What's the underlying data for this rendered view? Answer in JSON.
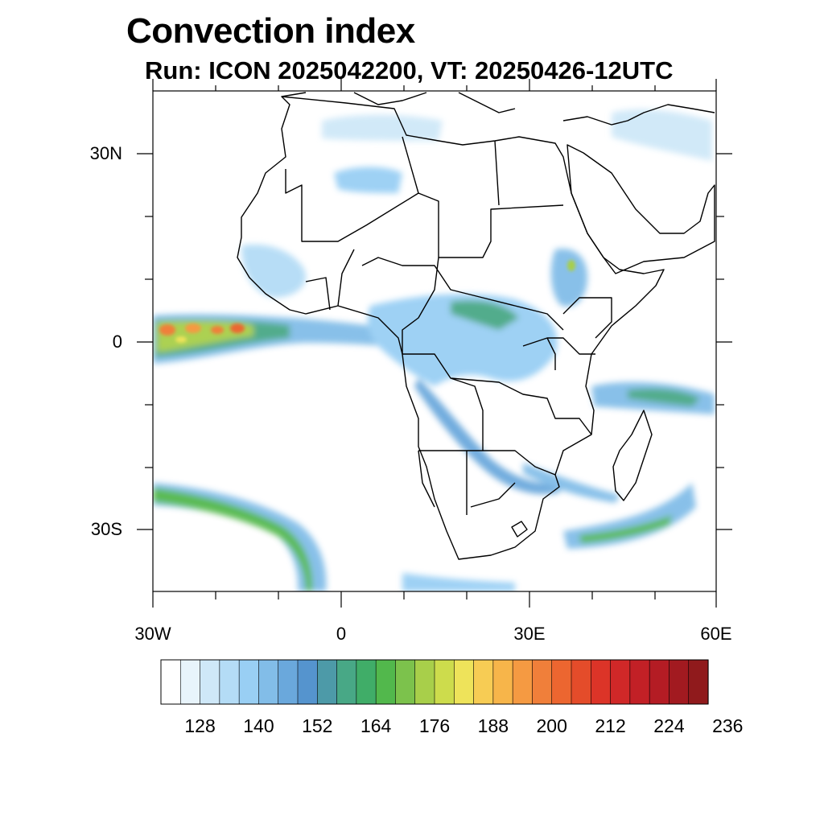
{
  "header": {
    "title": "Convection index",
    "subtitle": "Run: ICON 2025042200,  VT: 20250426-12UTC"
  },
  "map": {
    "lat_ticks": [
      "30N",
      "0",
      "30S"
    ],
    "lon_ticks": [
      "30W",
      "0",
      "30E",
      "60E"
    ],
    "extent": {
      "lon_min": -30,
      "lon_max": 60,
      "lat_min": -40,
      "lat_max": 40
    }
  },
  "colorbar": {
    "labels": [
      "128",
      "140",
      "152",
      "164",
      "176",
      "188",
      "200",
      "212",
      "224",
      "236"
    ],
    "colors": [
      "#ffffff",
      "#e8f4fb",
      "#cfe8f8",
      "#b4dcf6",
      "#99cff4",
      "#82bde8",
      "#6aa8dc",
      "#5594ce",
      "#4d9aa8",
      "#48a886",
      "#40ad68",
      "#52b84c",
      "#7cc24c",
      "#a8cf4a",
      "#cddc4c",
      "#eee35a",
      "#f7cc54",
      "#f7b54a",
      "#f59a42",
      "#f07f3a",
      "#ec6630",
      "#e44c2a",
      "#dc3428",
      "#d02828",
      "#c22026",
      "#b41c24",
      "#a21a20",
      "#901a1c"
    ]
  },
  "chart_data": {
    "type": "heatmap",
    "title": "Convection index",
    "subtitle": "Run: ICON 2025042200,  VT: 20250426-12UTC",
    "x_ticks": [
      "30W",
      "0",
      "30E",
      "60E"
    ],
    "y_ticks": [
      "30N",
      "0",
      "30S"
    ],
    "xlim": [
      -30,
      60
    ],
    "ylim": [
      -40,
      40
    ],
    "colorbar_ticks": [
      128,
      140,
      152,
      164,
      176,
      188,
      200,
      212,
      224,
      236
    ],
    "regions": [
      {
        "lon": -27,
        "lat": 2,
        "value": 210
      },
      {
        "lon": -23,
        "lat": 2,
        "value": 205
      },
      {
        "lon": -17,
        "lat": 2,
        "value": 198
      },
      {
        "lon": -10,
        "lat": 2,
        "value": 170
      },
      {
        "lon": -22,
        "lat": -27,
        "value": 160
      },
      {
        "lon": -5,
        "lat": -37,
        "value": 176
      },
      {
        "lon": 12,
        "lat": 5,
        "value": 150
      },
      {
        "lon": 20,
        "lat": 1,
        "value": 160
      },
      {
        "lon": 36,
        "lat": 10,
        "value": 165
      },
      {
        "lon": 50,
        "lat": -9,
        "value": 165
      },
      {
        "lon": 47,
        "lat": -29,
        "value": 165
      },
      {
        "lon": 35,
        "lat": -21,
        "value": 160
      },
      {
        "lon": -10,
        "lat": 8,
        "value": 140
      },
      {
        "lon": -2,
        "lat": 27,
        "value": 140
      }
    ]
  }
}
